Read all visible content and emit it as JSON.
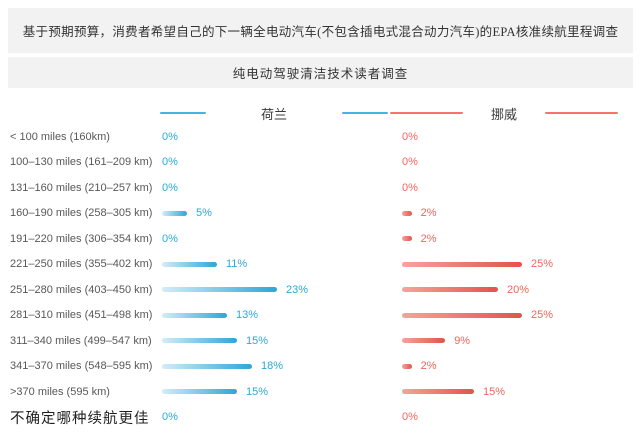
{
  "header": {
    "title": "基于预期预算，消费者希望自己的下一辆全电动汽车(不包含插电式混合动力汽车)的EPA核准续航里程调查",
    "subtitle": "纯电动驾驶清洁技术读者调查"
  },
  "legend": {
    "netherlands_label": "荷兰",
    "norway_label": "挪威"
  },
  "colors": {
    "netherlands_accent": "#2ba9d6",
    "netherlands_bar_light": "#d4ecf7",
    "netherlands_bar_dark": "#2da6d6",
    "norway_accent": "#f1655b",
    "norway_bar_light": "#f5a49c",
    "norway_bar_dark": "#e1544a",
    "header_background": "#f2f2f2",
    "category_text": "#58585a"
  },
  "chart_data": {
    "type": "bar",
    "orientation": "horizontal",
    "title": "基于预期预算，消费者希望自己的下一辆全电动汽车(不包含插电式混合动力汽车)的EPA核准续航里程调查",
    "subtitle": "纯电动驾驶清洁技术读者调查",
    "value_unit": "%",
    "grid": false,
    "legend_position": "top",
    "categories": [
      "< 100 miles (160km)",
      "100–130 miles (161–209 km)",
      "131–160 miles (210–257 km)",
      "160–190 miles (258–305 km)",
      "191–220 miles (306–354 km)",
      "221–250 miles (355–402 km)",
      "251–280 miles (403–450 km)",
      "281–310 miles (451–498 km)",
      "311–340 miles (499–547 km)",
      "341–370 miles (548–595 km)",
      ">370 miles (595 km)",
      "不确定哪种续航更佳"
    ],
    "series": [
      {
        "name": "荷兰",
        "color": "#2ba9d6",
        "values": [
          0,
          0,
          0,
          5,
          0,
          11,
          23,
          13,
          15,
          18,
          15,
          0
        ]
      },
      {
        "name": "挪威",
        "color": "#f1655b",
        "values": [
          0,
          0,
          0,
          2,
          2,
          25,
          20,
          25,
          9,
          2,
          15,
          0
        ]
      }
    ],
    "xlim": [
      0,
      25
    ]
  }
}
